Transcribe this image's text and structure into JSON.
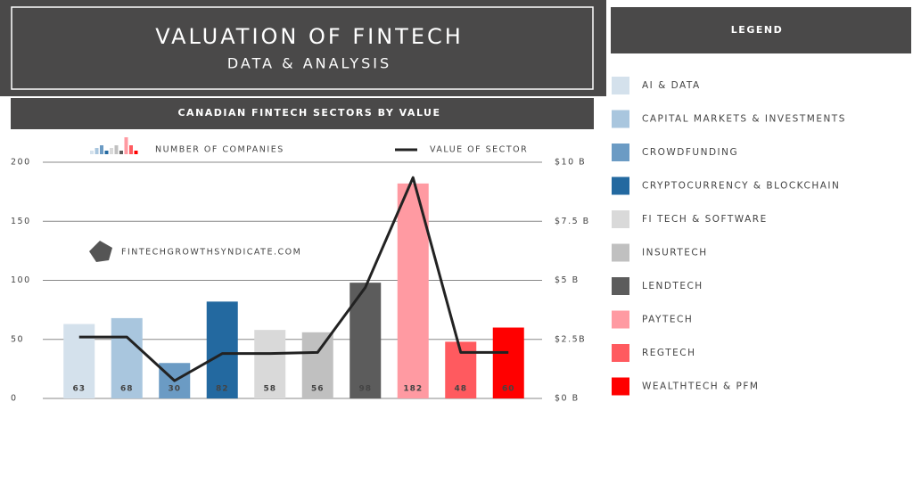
{
  "chart_data": {
    "type": "bar",
    "title": "VALUATION OF FINTECH",
    "subtitle": "DATA & ANALYSIS",
    "chart_title": "CANADIAN FINTECH SECTORS BY VALUE",
    "annotation": "FINTECHGROWTHSYNDICATE.COM",
    "legend_title": "LEGEND",
    "categories": [
      "AI & DATA",
      "CAPITAL MARKETS & INVESTMENTS",
      "CROWDFUNDING",
      "CRYPTOCURRENCY & BLOCKCHAIN",
      "FI TECH & SOFTWARE",
      "INSURTECH",
      "LENDTECH",
      "PAYTECH",
      "REGTECH",
      "WEALTHTECH & PFM"
    ],
    "series": [
      {
        "name": "NUMBER OF COMPANIES",
        "type": "bar",
        "colors": [
          "#d4e1ec",
          "#a9c6de",
          "#6b9bc4",
          "#2369a0",
          "#d9d9d9",
          "#c0c0c0",
          "#5c5c5c",
          "#ff9aa2",
          "#ff5a5f",
          "#ff0000"
        ],
        "values": [
          63,
          68,
          30,
          82,
          58,
          56,
          98,
          182,
          48,
          60
        ]
      },
      {
        "name": "VALUE OF SECTOR",
        "type": "line",
        "axis": "y2",
        "color": "#222222",
        "values": [
          2.6,
          2.6,
          0.75,
          1.9,
          1.9,
          1.95,
          4.7,
          9.35,
          1.95,
          1.95
        ]
      }
    ],
    "ylim": [
      0,
      200
    ],
    "yticks": [
      0,
      50,
      100,
      150,
      200
    ],
    "y2lim": [
      0,
      10
    ],
    "y2ticks": [
      {
        "value": 0,
        "label": "$0 B"
      },
      {
        "value": 2.5,
        "label": "$2.5B"
      },
      {
        "value": 5,
        "label": "$5 B"
      },
      {
        "value": 7.5,
        "label": "$7.5 B"
      },
      {
        "value": 10,
        "label": "$10 B"
      }
    ],
    "grid": true
  }
}
